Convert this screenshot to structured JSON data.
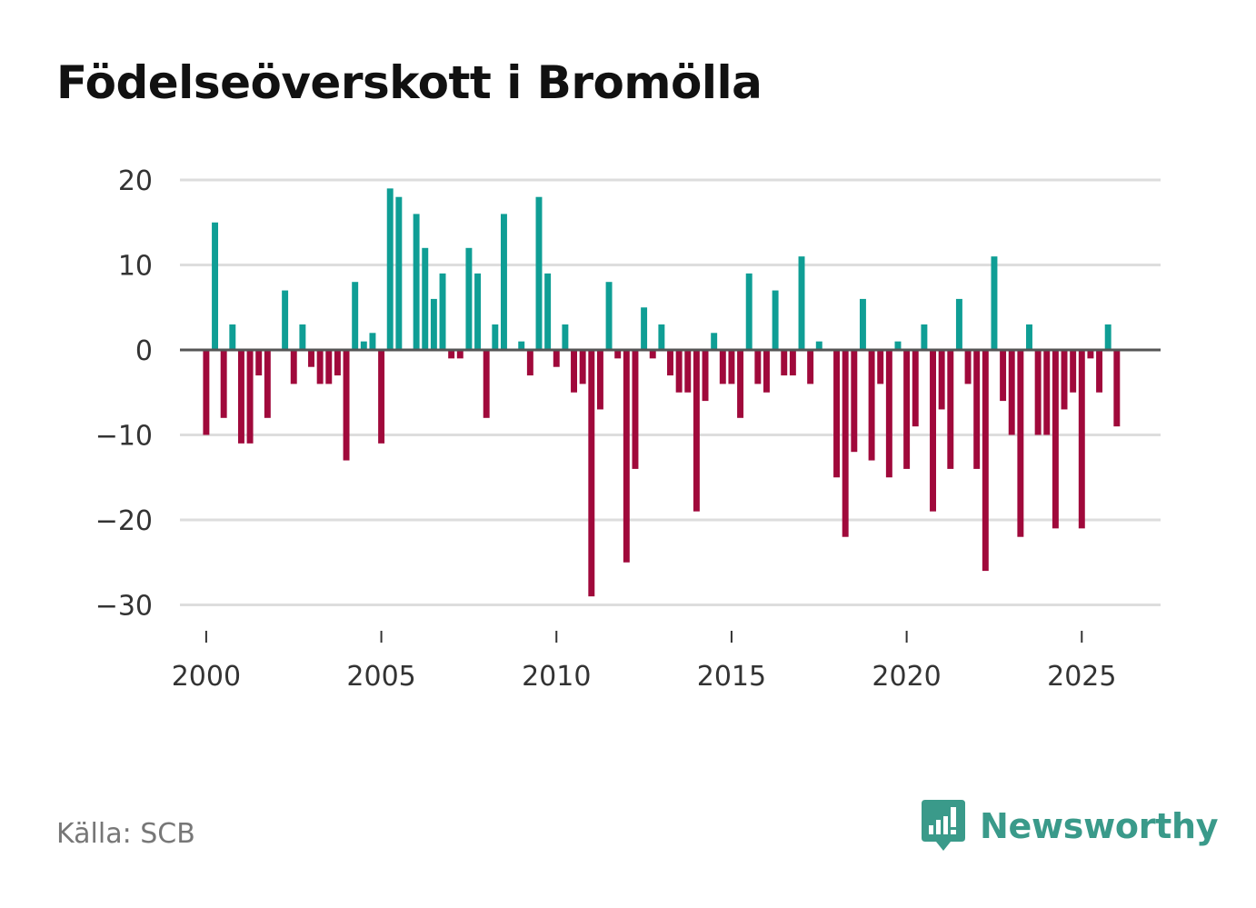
{
  "title": "Födelseöverskott i Bromölla",
  "source": "Källa: SCB",
  "brand": {
    "name": "Newsworthy",
    "icon": "newsworthy-chart-bubble-icon",
    "color": "#3a9a8a"
  },
  "colors": {
    "positive": "#0f9e95",
    "negative": "#a0093b",
    "grid": "#dddddd",
    "zero": "#555555"
  },
  "chart_data": {
    "type": "bar",
    "title": "Födelseöverskott i Bromölla",
    "xlabel": "",
    "ylabel": "",
    "ylim": [
      -33,
      20
    ],
    "yticks": [
      20,
      10,
      0,
      -10,
      -20,
      -30
    ],
    "ytick_labels": [
      "20",
      "10",
      "0",
      "−10",
      "−20",
      "−30"
    ],
    "xlim": [
      1999.25,
      2027.25
    ],
    "xticks": [
      2000,
      2005,
      2010,
      2015,
      2020,
      2025
    ],
    "xtick_labels": [
      "2000",
      "2005",
      "2010",
      "2015",
      "2020",
      "2025"
    ],
    "grid": true,
    "frequency": "quarterly",
    "start": 2000.0,
    "step": 0.25,
    "values": [
      -10,
      15,
      -8,
      3,
      -11,
      -11,
      -3,
      -8,
      0,
      7,
      -4,
      3,
      -2,
      -4,
      -4,
      -3,
      -13,
      8,
      1,
      2,
      -11,
      19,
      18,
      0,
      16,
      12,
      6,
      9,
      -1,
      -1,
      12,
      9,
      -8,
      3,
      16,
      0,
      1,
      -3,
      18,
      9,
      -2,
      3,
      -5,
      -4,
      -29,
      -7,
      8,
      -1,
      -25,
      -14,
      5,
      -1,
      3,
      -3,
      -5,
      -5,
      -19,
      -6,
      2,
      -4,
      -4,
      -8,
      9,
      -4,
      -5,
      7,
      -3,
      -3,
      11,
      -4,
      1,
      0,
      -15,
      -22,
      -12,
      6,
      -13,
      -4,
      -15,
      1,
      -14,
      -9,
      3,
      -19,
      -7,
      -14,
      6,
      -4,
      -14,
      -26,
      11,
      -6,
      -10,
      -22,
      3,
      -10,
      -10,
      -21,
      -7,
      -5,
      -21,
      -1,
      -5,
      3,
      -9
    ]
  }
}
